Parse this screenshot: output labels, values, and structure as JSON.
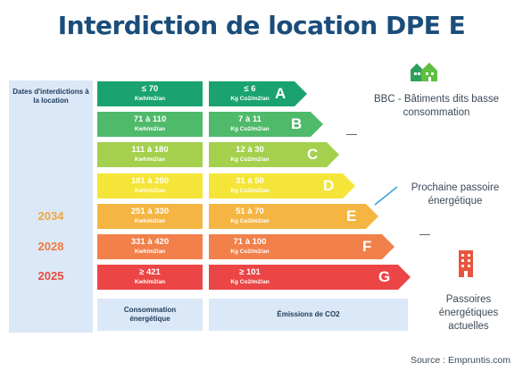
{
  "title": "Interdiction de location DPE E",
  "dates_header": "Dates d'interdictions à la location",
  "years": {
    "e": "2034",
    "f": "2028",
    "g": "2025"
  },
  "bands": [
    {
      "letter": "A",
      "cons": "≤ 70",
      "cons_unit": "Kwh/m2/an",
      "emis": "≤ 6",
      "emis_unit": "Kg Co2/m2/an",
      "cons_color": "#1aa371",
      "emis_color": "#1aa371"
    },
    {
      "letter": "B",
      "cons": "71 à 110",
      "cons_unit": "Kwh/m2/an",
      "emis": "7 à 11",
      "emis_unit": "Kg Co2/m2/an",
      "cons_color": "#4fba6a",
      "emis_color": "#4fba6a"
    },
    {
      "letter": "C",
      "cons": "111 à 180",
      "cons_unit": "Kwh/m2/an",
      "emis": "12 à 30",
      "emis_unit": "Kg Co2/m2/an",
      "cons_color": "#a4d04e",
      "emis_color": "#a4d04e"
    },
    {
      "letter": "D",
      "cons": "181 à 250",
      "cons_unit": "Kwh/m2/an",
      "emis": "31 à 50",
      "emis_unit": "Kg Co2/m2/an",
      "cons_color": "#f4e538",
      "emis_color": "#f4e538"
    },
    {
      "letter": "E",
      "cons": "251 à 330",
      "cons_unit": "Kwh/m2/an",
      "emis": "51 à 70",
      "emis_unit": "Kg Co2/m2/an",
      "cons_color": "#f5b543",
      "emis_color": "#f5b543"
    },
    {
      "letter": "F",
      "cons": "331 à 420",
      "cons_unit": "Kwh/m2/an",
      "emis": "71 à 100",
      "emis_unit": "Kg Co2/m2/an",
      "cons_color": "#f2804a",
      "emis_color": "#f2804a"
    },
    {
      "letter": "G",
      "cons": "≥ 421",
      "cons_unit": "Kwh/m2/an",
      "emis": "≥ 101",
      "emis_unit": "Kg Co2/m2/an",
      "cons_color": "#ec4545",
      "emis_color": "#ec4545"
    }
  ],
  "footer": {
    "consommation": "Consommation énergétique",
    "emissions": "Émissions de CO2"
  },
  "annotations": {
    "bbc": "BBC - Bâtiments dits basse consommation",
    "prochaine": "Prochaine passoire énergétique",
    "passoires": "Passoires énergétiques actuelles"
  },
  "icons": {
    "green_houses": "house-group-icon",
    "red_building": "building-icon"
  },
  "source": "Source : Empruntis.com"
}
